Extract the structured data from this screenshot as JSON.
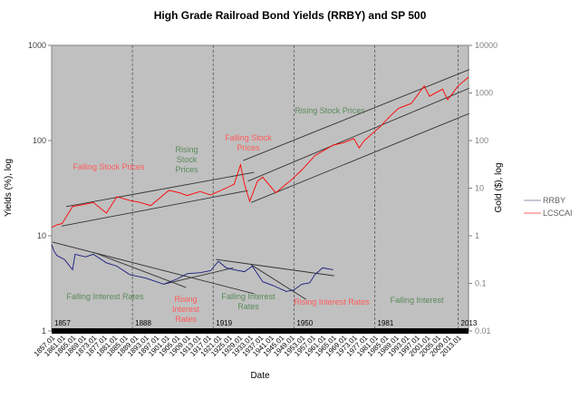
{
  "chart_data": {
    "type": "line",
    "title": "High Grade Railroad Bond Yields (RRBY)  and SP 500",
    "xlabel": "Date",
    "ylabel_left": "Yields (%), log",
    "ylabel_right": "Gold ($), log",
    "x_range": [
      1857,
      2017
    ],
    "ylim_left": [
      1,
      1000
    ],
    "ylim_right": [
      0.01,
      10000
    ],
    "log_scale": true,
    "grid": false,
    "legend_placement": "right",
    "background_color": "#c0c0c0",
    "left_ticks": [
      "1",
      "10",
      "100",
      "1000"
    ],
    "right_ticks": [
      "0.01",
      "0.1",
      "1",
      "10",
      "100",
      "1000",
      "10000"
    ],
    "x_tick_labels": [
      "1857.01",
      "1861.01",
      "1865.01",
      "1869.01",
      "1873.01",
      "1877.01",
      "1881.01",
      "1885.01",
      "1889.01",
      "1893.01",
      "1897.01",
      "1901.01",
      "1905.01",
      "1909.01",
      "1913.01",
      "1917.01",
      "1921.01",
      "1925.01",
      "1929.01",
      "1933.01",
      "1937.01",
      "1941.01",
      "1945.01",
      "1949.01",
      "1953.01",
      "1957.01",
      "1961.01",
      "1965.01",
      "1969.01",
      "1973.01",
      "1977.01",
      "1981.01",
      "1985.01",
      "1989.01",
      "1993.01",
      "1997.01",
      "2001.01",
      "2005.01",
      "2009.01",
      "2013.01"
    ],
    "period_markers": [
      {
        "year": 1857,
        "label": "1857"
      },
      {
        "year": 1888,
        "label": "1888"
      },
      {
        "year": 1919,
        "label": "1919"
      },
      {
        "year": 1950,
        "label": "1950"
      },
      {
        "year": 1981,
        "label": "1981"
      },
      {
        "year": 2013,
        "label": "2013"
      }
    ],
    "series": [
      {
        "name": "RRBY",
        "axis": "left",
        "color": "#1a1a80",
        "x": [
          1857,
          1858,
          1859,
          1862,
          1865,
          1866,
          1870,
          1873,
          1878,
          1882,
          1887,
          1893,
          1900,
          1905,
          1909,
          1914,
          1918,
          1921,
          1924,
          1927,
          1931,
          1934,
          1938,
          1942,
          1947,
          1950,
          1953,
          1956,
          1958,
          1961,
          1965
        ],
        "y": [
          8.1,
          6.8,
          6.2,
          5.6,
          4.4,
          6.4,
          6.0,
          6.4,
          5.2,
          4.8,
          3.9,
          3.6,
          3.1,
          3.5,
          4.0,
          4.1,
          4.3,
          5.4,
          4.6,
          4.4,
          4.2,
          4.8,
          3.3,
          3.0,
          2.6,
          2.7,
          3.1,
          3.2,
          3.9,
          4.6,
          4.4
        ]
      },
      {
        "name": "LCSCAI",
        "axis": "right",
        "color": "#ff0000",
        "x": [
          1857,
          1859,
          1861,
          1865,
          1869,
          1873,
          1878,
          1882,
          1887,
          1891,
          1895,
          1902,
          1906,
          1909,
          1914,
          1918,
          1922,
          1927,
          1929.5,
          1931,
          1933,
          1936,
          1938,
          1943,
          1949,
          1953,
          1958,
          1961,
          1965,
          1969,
          1973,
          1975,
          1977,
          1983,
          1987,
          1990,
          1995,
          2000,
          2002,
          2007,
          2009,
          2013,
          2017
        ],
        "y": [
          1.5,
          1.7,
          1.8,
          4.1,
          4.5,
          5.0,
          3.0,
          6.6,
          5.5,
          5.0,
          4.3,
          9.0,
          8.0,
          7.0,
          8.5,
          7.2,
          9.0,
          12,
          31,
          12,
          5.3,
          14,
          17,
          8,
          15,
          24,
          48,
          60,
          80,
          90,
          110,
          70,
          100,
          195,
          330,
          470,
          600,
          1400,
          850,
          1200,
          720,
          1400,
          2150
        ]
      }
    ],
    "trend_lines": [
      {
        "axis": "right",
        "x": [
          1862.6,
          1934.7
        ],
        "y": [
          4.1,
          21.5
        ]
      },
      {
        "axis": "right",
        "x": [
          1860.8,
          1932.3
        ],
        "y": [
          1.6,
          8.9
        ]
      },
      {
        "axis": "right",
        "x": [
          1930.5,
          2017.3
        ],
        "y": [
          38,
          3100
        ]
      },
      {
        "axis": "right",
        "x": [
          1932.3,
          2017.3
        ],
        "y": [
          14,
          1260
        ]
      },
      {
        "axis": "right",
        "x": [
          1933.6,
          2017.3
        ],
        "y": [
          5,
          370
        ]
      },
      {
        "axis": "left",
        "x": [
          1857.3,
          1934.7
        ],
        "y": [
          8.6,
          2.46
        ]
      },
      {
        "axis": "left",
        "x": [
          1873,
          1908.6
        ],
        "y": [
          6.7,
          2.86
        ]
      },
      {
        "axis": "left",
        "x": [
          1899.9,
          1926.7
        ],
        "y": [
          3.1,
          4.6
        ]
      },
      {
        "axis": "left",
        "x": [
          1920,
          1965.4
        ],
        "y": [
          5.65,
          3.8
        ]
      },
      {
        "axis": "left",
        "x": [
          1933.6,
          1954.6
        ],
        "y": [
          4.95,
          2.15
        ]
      }
    ],
    "annotations": [
      {
        "text": "Falling Stock Prices",
        "color": "#ff5a5a"
      },
      {
        "text": "Rising\nStock\nPrices",
        "color": "#5a8a5a"
      },
      {
        "text": "Falling Stock\nPrices",
        "color": "#ff5a5a"
      },
      {
        "text": "Rising Stock Prices",
        "color": "#5a8a5a"
      },
      {
        "text": "Falling Interest Rates",
        "color": "#5a8a5a"
      },
      {
        "text": "Rising\nInterest\nRates",
        "color": "#ff5a5a"
      },
      {
        "text": "Falling Interest\nRates",
        "color": "#5a8a5a"
      },
      {
        "text": "Rising Interest Rates",
        "color": "#ff5a5a"
      },
      {
        "text": "Falling Interest",
        "color": "#5a8a5a"
      }
    ]
  }
}
